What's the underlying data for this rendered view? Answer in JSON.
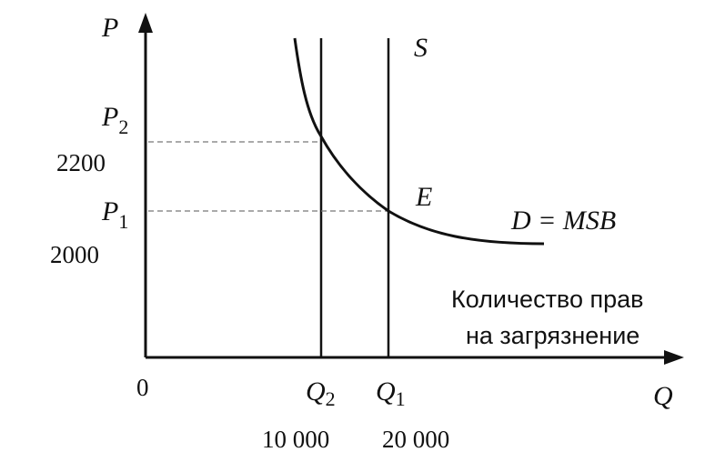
{
  "diagram": {
    "y_axis_label": "P",
    "x_axis_label": "Q",
    "origin_label": "0",
    "x_axis_caption_line1": "Количество прав",
    "x_axis_caption_line2": "на загрязнение",
    "supply_label": "S",
    "demand_label": "D = MSB",
    "equilibrium_label": "E",
    "p2_label": "P",
    "p2_sub": "2",
    "p2_value": "2200",
    "p1_label": "P",
    "p1_sub": "1",
    "p1_value": "2000",
    "q2_label": "Q",
    "q2_sub": "2",
    "q2_value": "10 000",
    "q1_label": "Q",
    "q1_sub": "1",
    "q1_value": "20 000"
  }
}
